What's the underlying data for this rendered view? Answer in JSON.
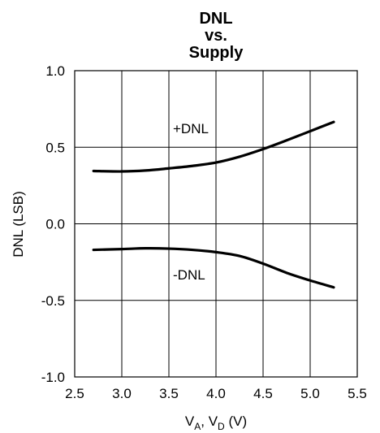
{
  "chart_data": {
    "type": "line",
    "title": [
      "DNL",
      "vs.",
      "Supply"
    ],
    "xlabel": {
      "base1": "V",
      "sub1": "A",
      "sep": ", ",
      "base2": "V",
      "sub2": "D",
      "unit": " (V)"
    },
    "ylabel": "DNL (LSB)",
    "xlim": [
      2.5,
      5.5
    ],
    "ylim": [
      -1.0,
      1.0
    ],
    "xticks": [
      "2.5",
      "3.0",
      "3.5",
      "4.0",
      "4.5",
      "5.0",
      "5.5"
    ],
    "yticks": [
      "1.0",
      "0.5",
      "0.0",
      "-0.5",
      "-1.0"
    ],
    "grid": true,
    "series": [
      {
        "name": "+DNL",
        "x": [
          2.7,
          3.0,
          3.25,
          3.5,
          3.75,
          4.0,
          4.25,
          4.5,
          4.75,
          5.0,
          5.25
        ],
        "y": [
          0.345,
          0.342,
          0.348,
          0.362,
          0.378,
          0.4,
          0.438,
          0.488,
          0.545,
          0.605,
          0.665
        ]
      },
      {
        "name": "-DNL",
        "x": [
          2.7,
          3.0,
          3.25,
          3.5,
          3.75,
          4.0,
          4.25,
          4.5,
          4.75,
          5.0,
          5.25
        ],
        "y": [
          -0.17,
          -0.165,
          -0.16,
          -0.162,
          -0.17,
          -0.185,
          -0.21,
          -0.26,
          -0.32,
          -0.37,
          -0.415
        ]
      }
    ],
    "annotations": [
      "+DNL",
      "-DNL"
    ]
  }
}
